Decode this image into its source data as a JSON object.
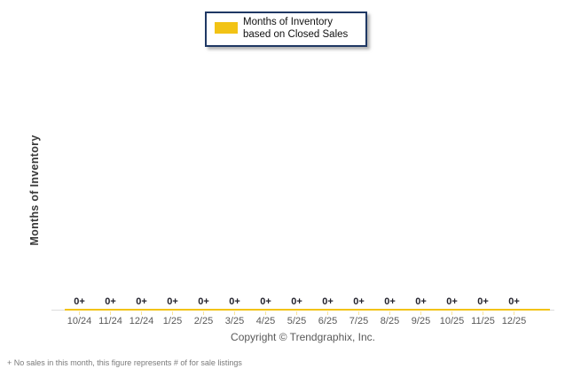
{
  "colors": {
    "gold": "#F2C315",
    "pale_gold_tick": "#F8E49C",
    "navy_border": "#1F3864",
    "axis_line_gray": "#DDDDDD",
    "value_label_dark": "#23232D",
    "text_gray": "#595959",
    "footnote_gray": "#7A7A7A"
  },
  "legend": {
    "swatch_icon": "gold-bar-swatch",
    "series_label": "Months of Inventory based on Closed Sales"
  },
  "y_axis": {
    "label": "Months of Inventory"
  },
  "chart_data": {
    "type": "bar",
    "title": "",
    "categories": [
      "10/24",
      "11/24",
      "12/24",
      "1/25",
      "2/25",
      "3/25",
      "4/25",
      "5/25",
      "6/25",
      "7/25",
      "8/25",
      "9/25",
      "10/25",
      "11/25",
      "12/25"
    ],
    "series": [
      {
        "name": "Months of Inventory based on Closed Sales",
        "color": "#F2C315",
        "values": [
          0,
          0,
          0,
          0,
          0,
          0,
          0,
          0,
          0,
          0,
          0,
          0,
          0,
          0,
          0
        ]
      }
    ],
    "value_labels": [
      "0+",
      "0+",
      "0+",
      "0+",
      "0+",
      "0+",
      "0+",
      "0+",
      "0+",
      "0+",
      "0+",
      "0+",
      "0+",
      "0+",
      "0+"
    ],
    "xlabel": "",
    "ylabel": "Months of Inventory",
    "ylim": [
      0,
      0
    ],
    "grid": false,
    "legend_position": "top-center"
  },
  "footer": {
    "copyright": "Copyright © Trendgraphix, Inc.",
    "footnote": "+ No sales in this month, this figure represents # of for sale listings"
  }
}
